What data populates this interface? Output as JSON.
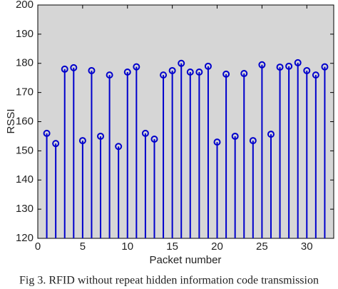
{
  "chart_data": {
    "type": "stem",
    "x": [
      1,
      2,
      3,
      4,
      5,
      6,
      7,
      8,
      9,
      10,
      11,
      12,
      13,
      14,
      15,
      16,
      17,
      18,
      19,
      20,
      21,
      22,
      23,
      24,
      25,
      26,
      27,
      28,
      29,
      30,
      31,
      32
    ],
    "values": [
      156,
      152.5,
      178,
      178.5,
      153.5,
      177.5,
      155,
      176,
      151.5,
      177,
      178.8,
      156,
      154,
      176,
      177.5,
      180,
      177,
      177,
      179,
      153,
      176.3,
      155,
      176.5,
      153.5,
      179.5,
      155.7,
      178.7,
      179,
      180.2,
      177.5,
      176,
      178.8
    ],
    "color": "#0000cc",
    "xlabel": "Packet number",
    "ylabel": "RSSI",
    "xlim": [
      0,
      33
    ],
    "xticks": [
      0,
      5,
      10,
      15,
      20,
      25,
      30
    ],
    "ylim": [
      120,
      200
    ],
    "yticks": [
      120,
      130,
      140,
      150,
      160,
      170,
      180,
      190,
      200
    ],
    "caption": "Fig 3. RFID without repeat hidden information code transmission"
  }
}
